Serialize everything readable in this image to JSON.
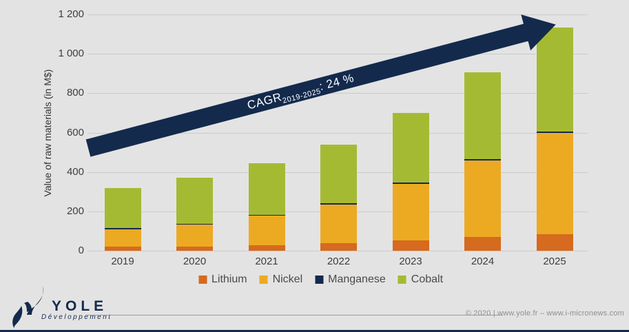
{
  "chart_data": {
    "type": "bar",
    "subtype": "stacked",
    "title": "",
    "ylabel": "Value of raw materials (in M$)",
    "xlabel": "",
    "categories": [
      "2019",
      "2020",
      "2021",
      "2022",
      "2023",
      "2024",
      "2025"
    ],
    "series": [
      {
        "name": "Lithium",
        "color": "#d66a1e",
        "values": [
          20,
          20,
          28,
          38,
          52,
          70,
          85
        ]
      },
      {
        "name": "Nickel",
        "color": "#ecaa23",
        "values": [
          88,
          112,
          150,
          198,
          288,
          388,
          512
        ]
      },
      {
        "name": "Manganese",
        "color": "#132a4d",
        "values": [
          7,
          5,
          5,
          6,
          7,
          7,
          8
        ]
      },
      {
        "name": "Cobalt",
        "color": "#a5ba33",
        "values": [
          205,
          233,
          262,
          298,
          353,
          440,
          530
        ]
      }
    ],
    "totals": [
      320,
      370,
      445,
      540,
      700,
      905,
      1135
    ],
    "ylim": [
      0,
      1200
    ],
    "ytick_step": 200,
    "ytick_labels": [
      "0",
      "200",
      "400",
      "600",
      "800",
      "1 000",
      "1 200"
    ],
    "grid": true,
    "legend_position": "bottom"
  },
  "annotation": {
    "cagr_prefix": "CAGR",
    "cagr_subscript": "2019-2025",
    "cagr_value": ": 24 %"
  },
  "branding": {
    "logo_text": "YOLE",
    "logo_subtext": "Développement",
    "footer": "© 2020 | www.yole.fr – www.i-micronews.com"
  },
  "colors": {
    "background": "#e4e3e3",
    "gridline": "#cbcbcb",
    "accent_navy": "#132a4d"
  }
}
